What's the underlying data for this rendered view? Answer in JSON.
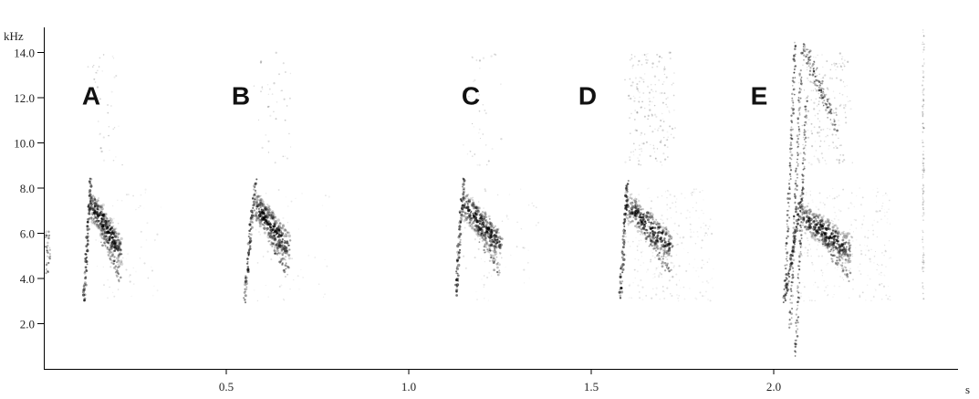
{
  "chart_data": {
    "type": "spectrogram",
    "x_unit": "s",
    "y_unit": "kHz",
    "xlim": [
      0,
      2.05
    ],
    "ylim": [
      0,
      15
    ],
    "x_ticks": [
      0.5,
      1.0,
      1.5,
      2.0
    ],
    "x_tick_labels": [
      "0.5",
      "1.0",
      "1.5",
      "2.0"
    ],
    "y_ticks": [
      2,
      4,
      6,
      8,
      10,
      12,
      14
    ],
    "y_tick_labels": [
      "2.0",
      "4.0",
      "6.0",
      "8.0",
      "10.0",
      "12.0",
      "14.0"
    ],
    "calls": [
      {
        "label": "A",
        "label_x": 0.13,
        "label_y": 12.1,
        "start_s": 0.11,
        "peak_s": 0.13,
        "end_s": 0.21,
        "low_khz": 3.0,
        "peak_khz": 8.5,
        "end_khz": 4.0
      },
      {
        "label": "B",
        "label_x": 0.54,
        "label_y": 12.1,
        "start_s": 0.55,
        "peak_s": 0.58,
        "end_s": 0.67,
        "low_khz": 3.0,
        "peak_khz": 8.4,
        "end_khz": 4.2
      },
      {
        "label": "C",
        "label_x": 1.17,
        "label_y": 12.1,
        "start_s": 1.13,
        "peak_s": 1.15,
        "end_s": 1.25,
        "low_khz": 3.3,
        "peak_khz": 8.5,
        "end_khz": 4.3
      },
      {
        "label": "D",
        "label_x": 1.49,
        "label_y": 12.1,
        "start_s": 1.58,
        "peak_s": 1.6,
        "end_s": 1.72,
        "low_khz": 3.2,
        "peak_khz": 8.4,
        "end_khz": 4.2
      },
      {
        "label": "E",
        "label_x": 1.96,
        "label_y": 12.1,
        "start_s": 2.03,
        "peak_s": 2.08,
        "end_s": 2.21,
        "low_khz": 3.0,
        "peak_khz": 8.0,
        "end_khz": 4.0
      }
    ]
  }
}
